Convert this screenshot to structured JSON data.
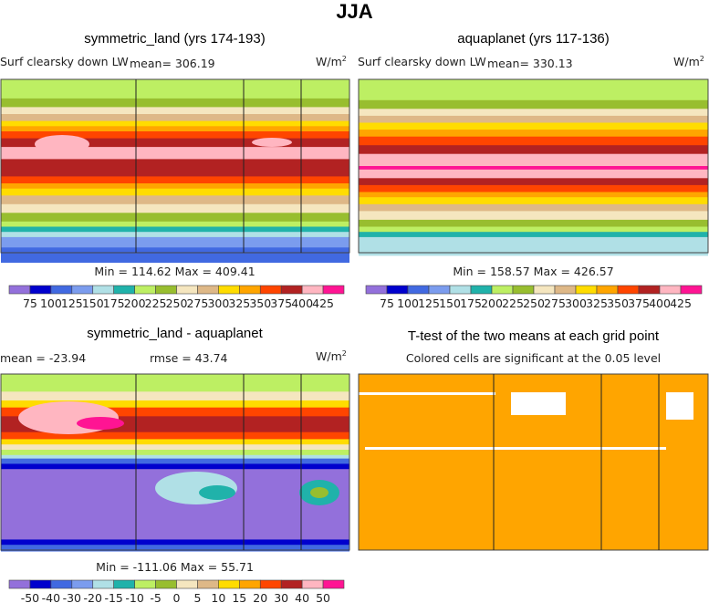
{
  "title": "JJA",
  "palette": [
    "#9370DB",
    "#0000CD",
    "#4169E1",
    "#7B9CEE",
    "#B0E0E6",
    "#20B2AA",
    "#BDEF63",
    "#98BE2F",
    "#F5E6BF",
    "#DEB887",
    "#FFDC00",
    "#FFA500",
    "#FF4500",
    "#B22222",
    "#FFB6C1",
    "#FF1493"
  ],
  "chart_data": [
    {
      "type": "heatmap",
      "title": "symmetric_land (yrs 174-193)",
      "left_string": "Surf clearsky down LW",
      "center_string": "mean= 306.19",
      "units": "W/m",
      "units_sup": "2",
      "min_max": "Min = 114.62 Max = 409.41",
      "levels": [
        "75",
        "100",
        "125",
        "150",
        "175",
        "200",
        "225",
        "250",
        "275",
        "300",
        "325",
        "350",
        "375",
        "400",
        "425"
      ],
      "mean": 306.19,
      "min": 114.62,
      "max": 409.41
    },
    {
      "type": "heatmap",
      "title": "aquaplanet (yrs 117-136)",
      "left_string": "Surf clearsky down LW",
      "center_string": "mean= 330.13",
      "units": "W/m",
      "units_sup": "2",
      "min_max": "Min = 158.57 Max = 426.57",
      "levels": [
        "75",
        "100",
        "125",
        "150",
        "175",
        "200",
        "225",
        "250",
        "275",
        "300",
        "325",
        "350",
        "375",
        "400",
        "425"
      ],
      "mean": 330.13,
      "min": 158.57,
      "max": 426.57
    },
    {
      "type": "heatmap",
      "title": "symmetric_land - aquaplanet",
      "left_string": "mean = -23.94",
      "center_string": "rmse =  43.74",
      "units": "W/m",
      "units_sup": "2",
      "min_max": "Min = -111.06 Max =  55.71",
      "levels": [
        "-50",
        "-40",
        "-30",
        "-20",
        "-15",
        "-10",
        "-5",
        "0",
        "5",
        "10",
        "15",
        "20",
        "30",
        "40",
        "50"
      ],
      "mean": -23.94,
      "rmse": 43.74,
      "min": -111.06,
      "max": 55.71
    },
    {
      "type": "heatmap",
      "title": "T-test of the two means at each grid point",
      "subtitle": "Colored cells are significant at the 0.05 level",
      "significant_color": "#FFA500"
    }
  ]
}
